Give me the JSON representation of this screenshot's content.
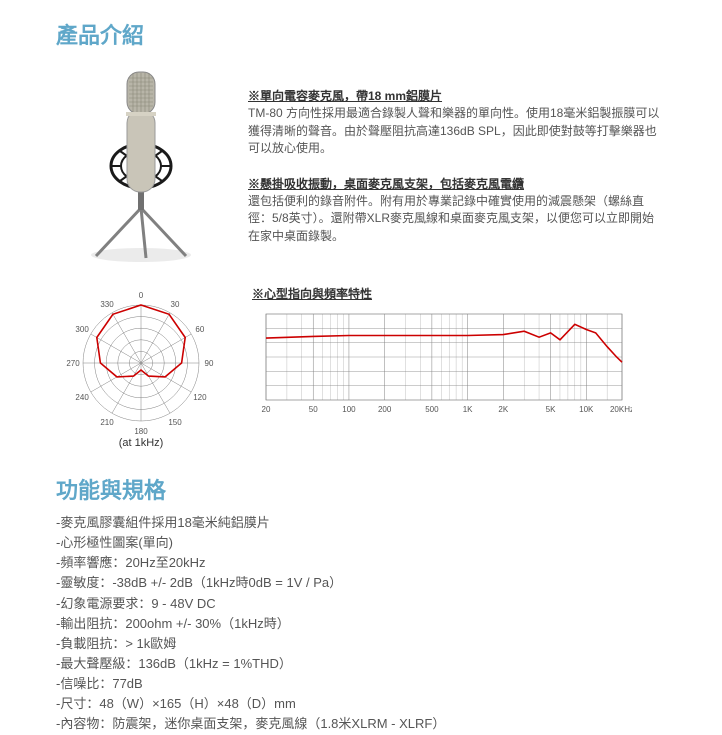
{
  "intro": {
    "title": "產品介紹",
    "product_image_alt": "TM-80 condenser microphone with shock mount and tripod stand",
    "paragraphs": [
      {
        "heading": "※單向電容麥克風，帶18 mm鋁膜片",
        "body": "TM-80 方向性採用最適合錄製人聲和樂器的單向性。使用18毫米鋁製振膜可以獲得清晰的聲音。由於聲壓阻抗高達136dB SPL，因此即使對鼓等打擊樂器也可以放心使用。"
      },
      {
        "heading": "※懸掛吸收振動，桌面麥克風支架，包括麥克風電纜",
        "body": "還包括便利的錄音附件。附有用於專業記錄中確實使用的減震懸架（螺絲直徑：5/8英寸）。還附帶XLR麥克風線和桌面麥克風支架，以便您可以立即開始在家中桌面錄製。"
      }
    ]
  },
  "polar_chart": {
    "type": "polar",
    "caption": "(at 1kHz)",
    "angle_labels": [
      "0",
      "30",
      "60",
      "90",
      "120",
      "150",
      "180",
      "210",
      "240",
      "270",
      "300",
      "330"
    ],
    "rings": 5,
    "grid_color": "#808080",
    "curve_color": "#cc0000",
    "bg_color": "#ffffff",
    "pattern_points_deg_radius": [
      [
        0,
        1.0
      ],
      [
        30,
        0.97
      ],
      [
        60,
        0.88
      ],
      [
        90,
        0.7
      ],
      [
        120,
        0.48
      ],
      [
        150,
        0.26
      ],
      [
        180,
        0.12
      ],
      [
        210,
        0.26
      ],
      [
        240,
        0.48
      ],
      [
        270,
        0.7
      ],
      [
        300,
        0.88
      ],
      [
        330,
        0.97
      ]
    ]
  },
  "freq_chart": {
    "type": "line",
    "title": "※心型指向與頻率特性",
    "x_labels": [
      "20",
      "50",
      "100",
      "200",
      "500",
      "1K",
      "2K",
      "5K",
      "10K",
      "20KHz"
    ],
    "x_scale": "log",
    "xlim": [
      20,
      20000
    ],
    "y_rows": 6,
    "grid_color": "#808080",
    "curve_color": "#cc0000",
    "bg_color": "#ffffff",
    "curve_points_logx_y": [
      [
        20,
        0.72
      ],
      [
        50,
        0.74
      ],
      [
        100,
        0.75
      ],
      [
        200,
        0.75
      ],
      [
        500,
        0.75
      ],
      [
        1000,
        0.75
      ],
      [
        2000,
        0.76
      ],
      [
        3000,
        0.8
      ],
      [
        4000,
        0.73
      ],
      [
        5000,
        0.78
      ],
      [
        6000,
        0.7
      ],
      [
        8000,
        0.88
      ],
      [
        10000,
        0.82
      ],
      [
        12000,
        0.78
      ],
      [
        15000,
        0.62
      ],
      [
        18000,
        0.5
      ],
      [
        20000,
        0.44
      ]
    ]
  },
  "specs": {
    "title": "功能與規格",
    "items": [
      "麥克風膠囊組件採用18毫米純鋁膜片",
      "心形極性圖案(單向)",
      "頻率響應：20Hz至20kHz",
      "靈敏度：-38dB +/- 2dB（1kHz時0dB = 1V / Pa）",
      "幻象電源要求：9 - 48V DC",
      "輸出阻抗：200ohm +/- 30%（1kHz時）",
      "負載阻抗：> 1k歐姆",
      "最大聲壓級：136dB（1kHz = 1%THD）",
      "信噪比：77dB",
      "尺寸：48（W）×165（H）×48（D）mm",
      "內容物：防震架，迷你桌面支架，麥克風線（1.8米XLRM - XLRF）"
    ]
  },
  "colors": {
    "heading": "#5fa7c9",
    "text": "#555555",
    "mic_body": "#c9c5b8",
    "mic_grill": "#b8b5a8",
    "mount_black": "#1a1a1a"
  }
}
